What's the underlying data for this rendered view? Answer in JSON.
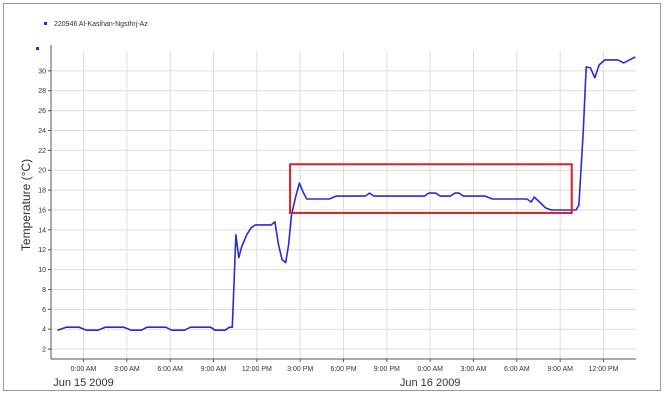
{
  "chart_data": {
    "type": "line",
    "title": "",
    "legend": {
      "position": "top-left",
      "entries": [
        {
          "name": "220946 Al-Kasihan-Ngsthrj-Az",
          "color": "#2a2ad6"
        }
      ]
    },
    "ylabel": "Temperature (°C)",
    "xlabel": "",
    "ylim": [
      1,
      32
    ],
    "y_ticks": [
      2,
      4,
      6,
      8,
      10,
      12,
      14,
      16,
      18,
      20,
      22,
      24,
      26,
      28,
      30
    ],
    "x_unit": "hours since Jun 15 2009 00:00",
    "xlim": [
      -2.25,
      38.25
    ],
    "grid": true,
    "x_ticks": [
      {
        "x": 0,
        "label": "0:00 AM"
      },
      {
        "x": 3,
        "label": "3:00 AM"
      },
      {
        "x": 6,
        "label": "6:00 AM"
      },
      {
        "x": 9,
        "label": "9:00 AM"
      },
      {
        "x": 12,
        "label": "12:00 PM"
      },
      {
        "x": 15,
        "label": "3:00 PM"
      },
      {
        "x": 18,
        "label": "6:00 PM"
      },
      {
        "x": 21,
        "label": "9:00 PM"
      },
      {
        "x": 24,
        "label": "0:00 AM"
      },
      {
        "x": 27,
        "label": "3:00 AM"
      },
      {
        "x": 30,
        "label": "6:00 AM"
      },
      {
        "x": 33,
        "label": "9:00 AM"
      },
      {
        "x": 36,
        "label": "12:00 PM"
      }
    ],
    "date_labels": [
      {
        "x": 0,
        "label": "Jun 15 2009"
      },
      {
        "x": 24,
        "label": "Jun 16 2009"
      }
    ],
    "series": [
      {
        "name": "220946 Al-Kasihan-Ngsthrj-Az",
        "color": "#2a2ad6",
        "points": [
          [
            -1.8,
            3.9
          ],
          [
            -1.2,
            4.2
          ],
          [
            -0.3,
            4.2
          ],
          [
            0.2,
            3.9
          ],
          [
            1.0,
            3.9
          ],
          [
            1.5,
            4.2
          ],
          [
            2.8,
            4.2
          ],
          [
            3.3,
            3.9
          ],
          [
            4.0,
            3.9
          ],
          [
            4.4,
            4.2
          ],
          [
            5.7,
            4.2
          ],
          [
            6.1,
            3.9
          ],
          [
            7.0,
            3.9
          ],
          [
            7.4,
            4.2
          ],
          [
            8.8,
            4.2
          ],
          [
            9.1,
            3.9
          ],
          [
            9.8,
            3.9
          ],
          [
            10.1,
            4.2
          ],
          [
            10.3,
            4.2
          ],
          [
            10.55,
            13.5
          ],
          [
            10.75,
            11.2
          ],
          [
            10.95,
            12.3
          ],
          [
            11.3,
            13.5
          ],
          [
            11.6,
            14.2
          ],
          [
            11.9,
            14.5
          ],
          [
            13.0,
            14.5
          ],
          [
            13.25,
            14.8
          ],
          [
            13.5,
            12.5
          ],
          [
            13.75,
            11.0
          ],
          [
            14.0,
            10.7
          ],
          [
            14.2,
            12.5
          ],
          [
            14.4,
            15.5
          ],
          [
            14.7,
            17.4
          ],
          [
            14.95,
            18.7
          ],
          [
            15.2,
            17.8
          ],
          [
            15.45,
            17.1
          ],
          [
            16.5,
            17.1
          ],
          [
            17.0,
            17.1
          ],
          [
            17.5,
            17.4
          ],
          [
            18.0,
            17.4
          ],
          [
            19.5,
            17.4
          ],
          [
            19.8,
            17.7
          ],
          [
            20.1,
            17.4
          ],
          [
            23.6,
            17.4
          ],
          [
            23.9,
            17.7
          ],
          [
            24.4,
            17.7
          ],
          [
            24.7,
            17.4
          ],
          [
            25.4,
            17.4
          ],
          [
            25.7,
            17.7
          ],
          [
            26.0,
            17.7
          ],
          [
            26.3,
            17.4
          ],
          [
            27.8,
            17.4
          ],
          [
            28.3,
            17.1
          ],
          [
            30.7,
            17.1
          ],
          [
            31.0,
            16.8
          ],
          [
            31.2,
            17.3
          ],
          [
            31.5,
            16.9
          ],
          [
            32.0,
            16.2
          ],
          [
            32.4,
            16.0
          ],
          [
            34.1,
            16.0
          ],
          [
            34.3,
            16.5
          ],
          [
            34.6,
            24.0
          ],
          [
            34.8,
            30.4
          ],
          [
            35.1,
            30.3
          ],
          [
            35.4,
            29.3
          ],
          [
            35.7,
            30.6
          ],
          [
            36.1,
            31.1
          ],
          [
            36.5,
            31.1
          ],
          [
            37.0,
            31.1
          ],
          [
            37.4,
            30.8
          ],
          [
            37.8,
            31.1
          ],
          [
            38.2,
            31.4
          ]
        ]
      }
    ],
    "annotation": {
      "shape": "rectangle",
      "color": "#e02020",
      "x_range": [
        14.3,
        33.8
      ],
      "y_range": [
        15.7,
        20.6
      ]
    }
  }
}
